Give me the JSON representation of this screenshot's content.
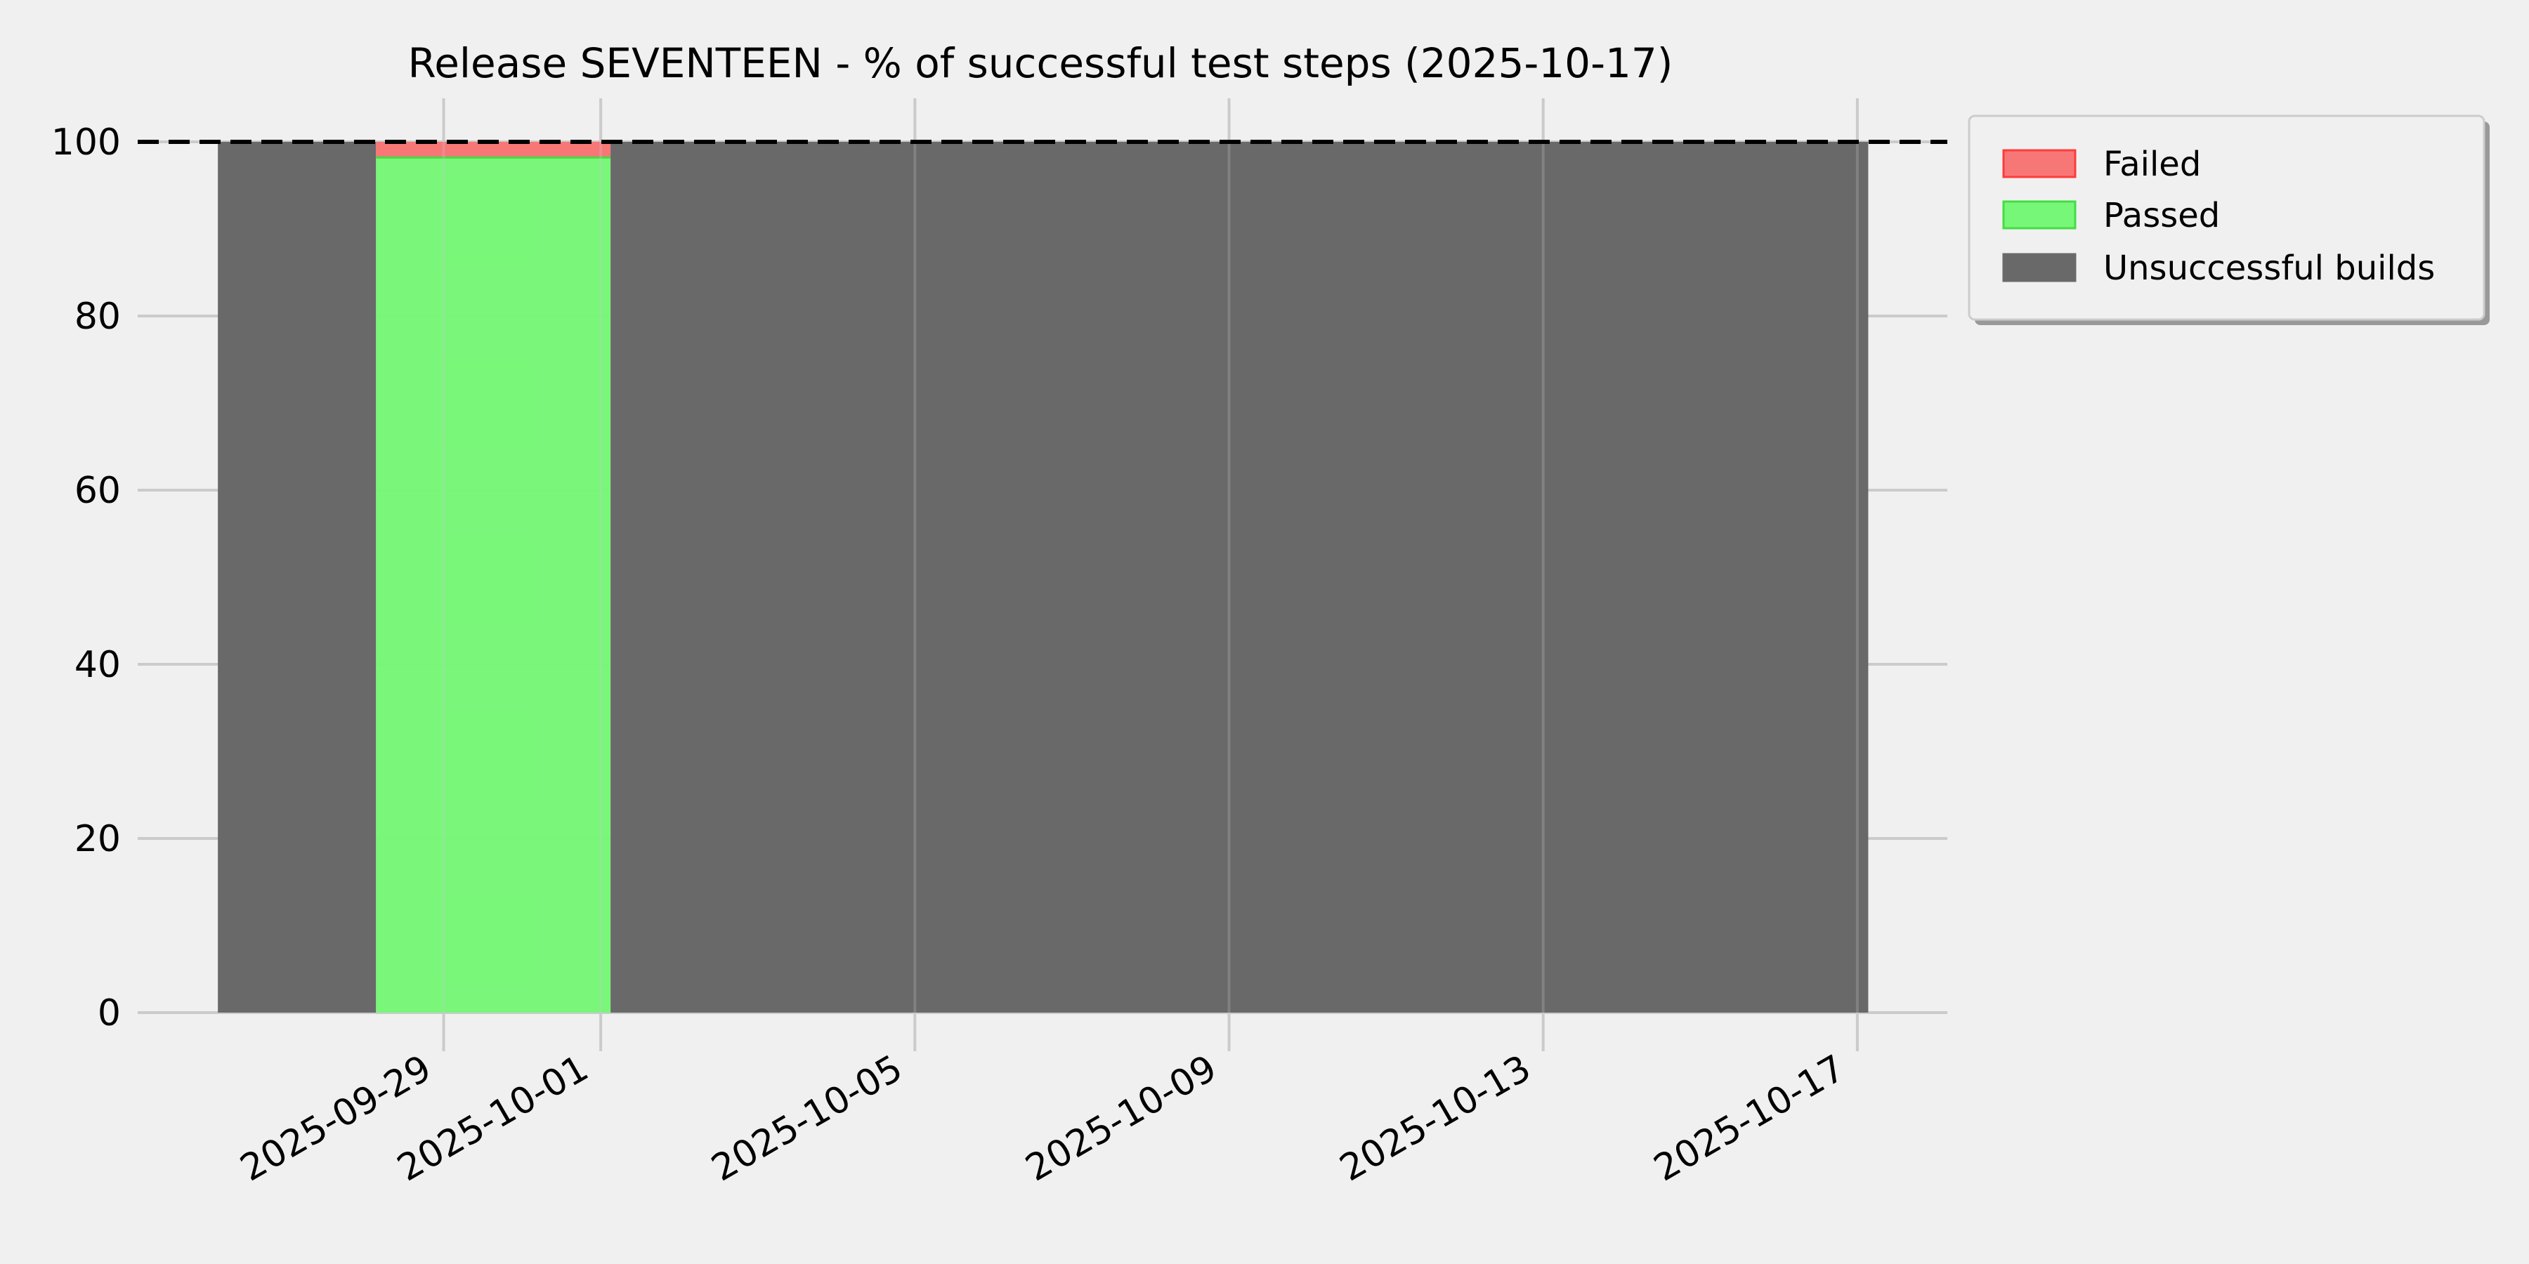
{
  "chart_data": {
    "type": "area",
    "title": "Release SEVENTEEN - % of successful test steps (2025-10-17)",
    "xlabel": "",
    "ylabel": "",
    "xlim": [
      "2025-09-25T02:30",
      "2025-10-18T03:30"
    ],
    "ylim": [
      0,
      105
    ],
    "x_ticks": [
      "2025-09-29",
      "2025-10-01",
      "2025-10-05",
      "2025-10-09",
      "2025-10-13",
      "2025-10-17"
    ],
    "y_ticks": [
      0,
      20,
      40,
      60,
      80,
      100
    ],
    "grid": true,
    "reference_line": {
      "y": 100,
      "style": "dashed",
      "color": "#000000"
    },
    "legend_position": "outside-top-right",
    "series": [
      {
        "name": "Failed",
        "color": "#f77777",
        "edge": "#ff3b3b"
      },
      {
        "name": "Passed",
        "color": "#77f777",
        "edge": "#44dd44"
      },
      {
        "name": "Unsuccessful builds",
        "color": "#696969",
        "edge": "#696969"
      }
    ],
    "segments": [
      {
        "start": "2025-09-26T03:00",
        "end": "2025-09-28T03:20",
        "passed": 0,
        "failed": 0,
        "unsuccessful": 100
      },
      {
        "start": "2025-09-28T03:20",
        "end": "2025-10-01T03:00",
        "passed": 98.2,
        "failed": 1.8,
        "unsuccessful": 0
      },
      {
        "start": "2025-10-01T03:00",
        "end": "2025-10-17T03:20",
        "passed": 0,
        "failed": 0,
        "unsuccessful": 100
      }
    ]
  }
}
